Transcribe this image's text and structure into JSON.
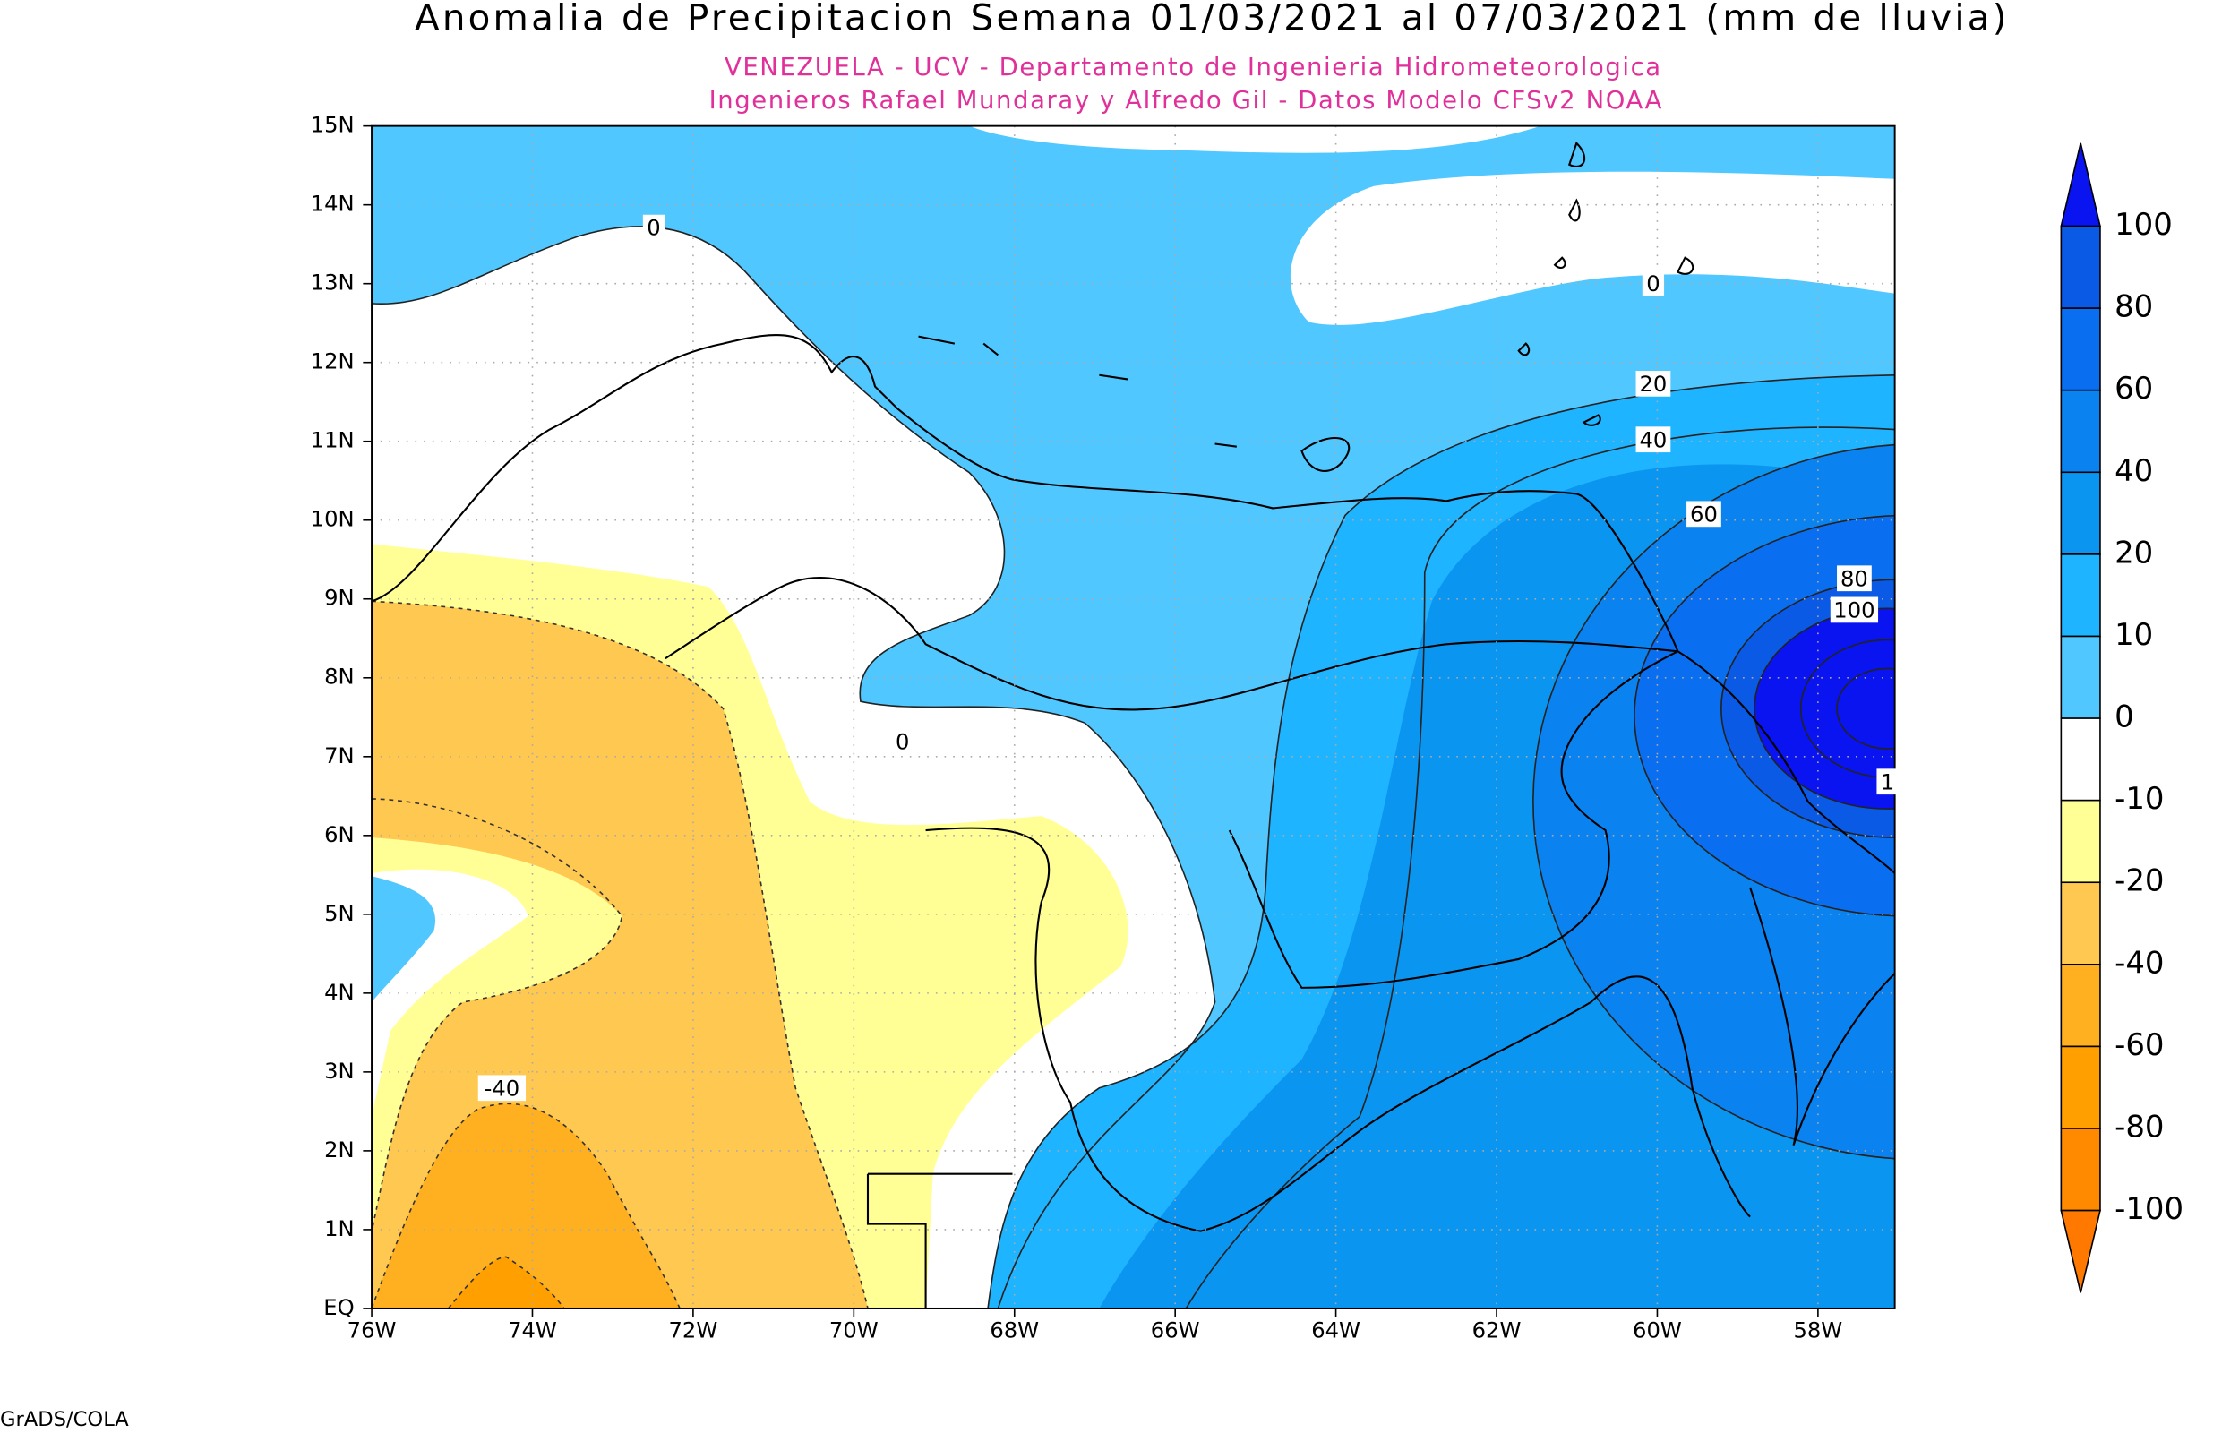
{
  "title": "Anomalia de Precipitacion Semana 01/03/2021 al 07/03/2021 (mm de lluvia)",
  "subtitle_lines": [
    "VENEZUELA - UCV - Departamento de Ingenieria Hidrometeorologica",
    "Ingenieros Rafael Mundaray y Alfredo Gil - Datos Modelo CFSv2 NOAA"
  ],
  "lat_labels": [
    "15N",
    "14N",
    "13N",
    "12N",
    "11N",
    "10N",
    "9N",
    "8N",
    "7N",
    "6N",
    "5N",
    "4N",
    "3N",
    "2N",
    "1N",
    "EQ"
  ],
  "lon_labels": [
    "76W",
    "74W",
    "72W",
    "70W",
    "68W",
    "66W",
    "64W",
    "62W",
    "60W",
    "58W"
  ],
  "colorbar": {
    "labels": [
      "100",
      "80",
      "60",
      "40",
      "20",
      "10",
      "0",
      "-10",
      "-20",
      "-40",
      "-60",
      "-80",
      "-100"
    ],
    "colors": [
      "#0a14f0",
      "#0a5ae6",
      "#0a6ef0",
      "#0a82f0",
      "#0a96f0",
      "#1eb4ff",
      "#50c8ff",
      "#ffffff",
      "#ffff96",
      "#ffc850",
      "#ffb020",
      "#ffa000",
      "#ff8a00",
      "#ff7800"
    ]
  },
  "contour_labels": [
    "0",
    "0",
    "0",
    "20",
    "40",
    "60",
    "80",
    "100",
    "1",
    "-40"
  ],
  "footer": "GrADS/COLA"
}
